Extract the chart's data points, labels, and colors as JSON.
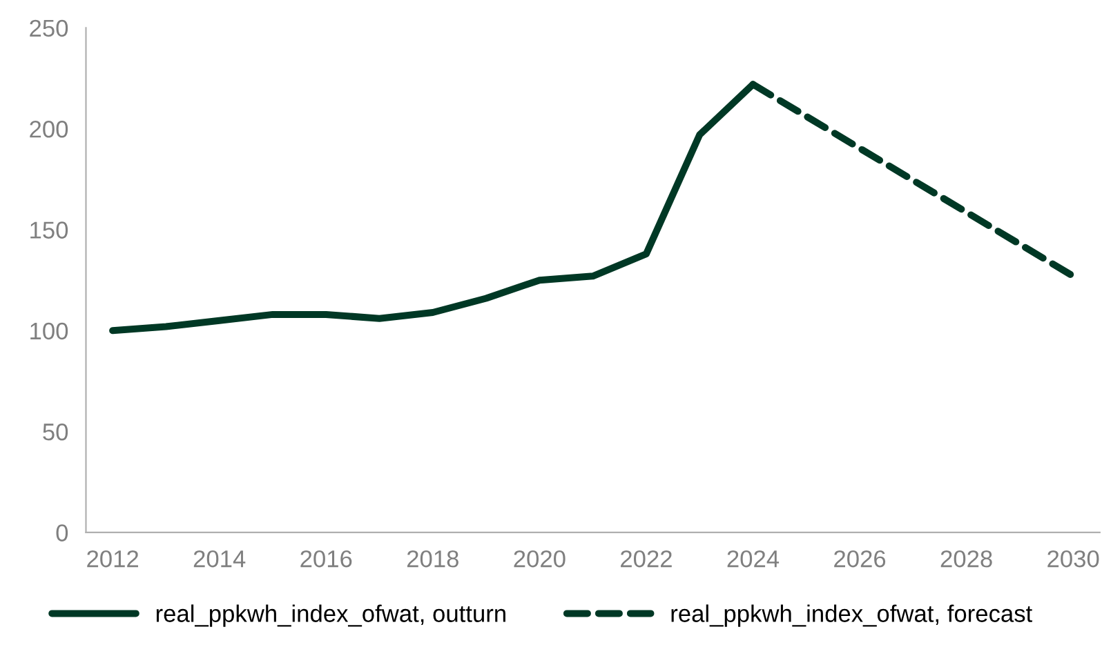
{
  "chart_data": {
    "type": "line",
    "series": [
      {
        "name": "real_ppkwh_index_ofwat, outturn",
        "color": "#003825",
        "line_style": "solid",
        "x": [
          2012,
          2013,
          2014,
          2015,
          2016,
          2017,
          2018,
          2019,
          2020,
          2021,
          2022,
          2023,
          2024
        ],
        "values": [
          100,
          102,
          105,
          108,
          108,
          106,
          109,
          116,
          125,
          127,
          138,
          197,
          222
        ]
      },
      {
        "name": "real_ppkwh_index_ofwat, forecast",
        "color": "#003825",
        "line_style": "dashed",
        "x": [
          2024,
          2030
        ],
        "values": [
          222,
          127
        ]
      }
    ],
    "xlim": [
      2011.5,
      2030.5
    ],
    "xticks": [
      2012,
      2014,
      2016,
      2018,
      2020,
      2022,
      2024,
      2026,
      2028,
      2030
    ],
    "ylim": [
      0,
      250
    ],
    "yticks": [
      0,
      50,
      100,
      150,
      200,
      250
    ],
    "grid": false,
    "legend": "bottom",
    "marker": "none"
  }
}
